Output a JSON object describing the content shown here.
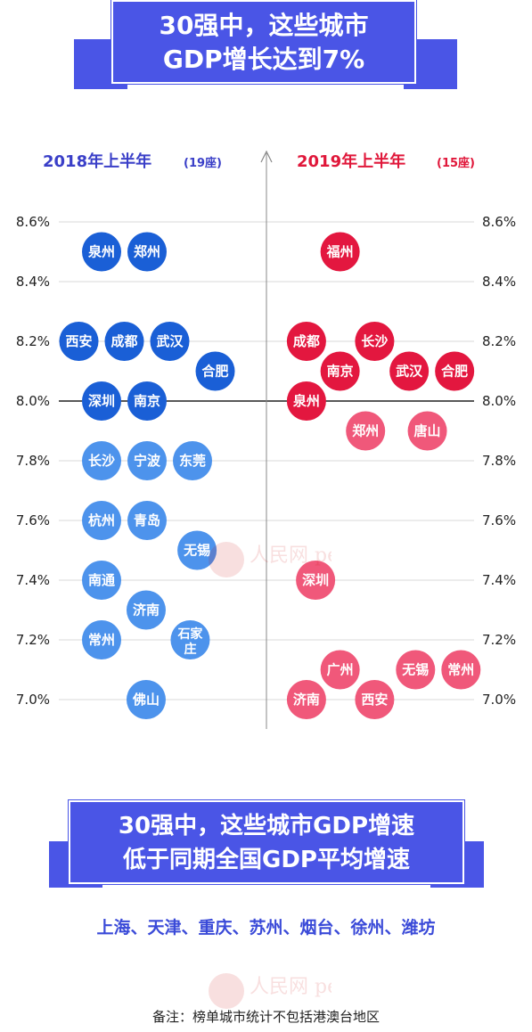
{
  "title_banner": {
    "line1": "30强中，这些城市",
    "line2": "GDP增长达到7%"
  },
  "chart_data": {
    "type": "scatter",
    "left_panel": {
      "title": "2018年上半年",
      "count": "(19座)",
      "color": "#3a3fc8",
      "points": [
        {
          "city": "泉州",
          "x": 1,
          "y": 8.5
        },
        {
          "city": "郑州",
          "x": 2,
          "y": 8.5
        },
        {
          "city": "西安",
          "x": 0.5,
          "y": 8.2
        },
        {
          "city": "成都",
          "x": 1.5,
          "y": 8.2
        },
        {
          "city": "武汉",
          "x": 2.5,
          "y": 8.2
        },
        {
          "city": "合肥",
          "x": 3.5,
          "y": 8.1
        },
        {
          "city": "深圳",
          "x": 1,
          "y": 8.0
        },
        {
          "city": "南京",
          "x": 2,
          "y": 8.0
        },
        {
          "city": "长沙",
          "x": 1,
          "y": 7.8
        },
        {
          "city": "宁波",
          "x": 2,
          "y": 7.8
        },
        {
          "city": "东莞",
          "x": 3,
          "y": 7.8
        },
        {
          "city": "杭州",
          "x": 1,
          "y": 7.6
        },
        {
          "city": "青岛",
          "x": 2,
          "y": 7.6
        },
        {
          "city": "无锡",
          "x": 3.1,
          "y": 7.5
        },
        {
          "city": "南通",
          "x": 1,
          "y": 7.4
        },
        {
          "city": "济南",
          "x": 1.98,
          "y": 7.3
        },
        {
          "city": "常州",
          "x": 1,
          "y": 7.2
        },
        {
          "city": "石家庄",
          "x": 2.95,
          "y": 7.2
        },
        {
          "city": "佛山",
          "x": 1.98,
          "y": 7.0
        }
      ]
    },
    "right_panel": {
      "title": "2019年上半年",
      "count": "(15座)",
      "color": "#e0173a",
      "points": [
        {
          "city": "福州",
          "x": 1.64,
          "y": 8.5
        },
        {
          "city": "成都",
          "x": 0.9,
          "y": 8.2
        },
        {
          "city": "长沙",
          "x": 2.4,
          "y": 8.2
        },
        {
          "city": "南京",
          "x": 1.64,
          "y": 8.1
        },
        {
          "city": "武汉",
          "x": 3.16,
          "y": 8.1
        },
        {
          "city": "合肥",
          "x": 4.16,
          "y": 8.1
        },
        {
          "city": "泉州",
          "x": 0.9,
          "y": 8.0
        },
        {
          "city": "郑州",
          "x": 2.2,
          "y": 7.9
        },
        {
          "city": "唐山",
          "x": 3.56,
          "y": 7.9
        },
        {
          "city": "深圳",
          "x": 1.1,
          "y": 7.4
        },
        {
          "city": "广州",
          "x": 1.64,
          "y": 7.1
        },
        {
          "city": "无锡",
          "x": 3.3,
          "y": 7.1
        },
        {
          "city": "常州",
          "x": 4.3,
          "y": 7.1
        },
        {
          "city": "济南",
          "x": 0.9,
          "y": 7.0
        },
        {
          "city": "西安",
          "x": 2.4,
          "y": 7.0
        }
      ]
    },
    "y_ticks": [
      "8.6%",
      "8.4%",
      "8.2%",
      "8.0%",
      "7.8%",
      "7.6%",
      "7.4%",
      "7.2%",
      "7.0%"
    ],
    "y_tick_values": [
      8.6,
      8.4,
      8.2,
      8.0,
      7.8,
      7.6,
      7.4,
      7.2,
      7.0
    ],
    "ylim": [
      7.0,
      8.6
    ],
    "reference_line": 8.0,
    "colors": {
      "left_above": "#1a5fd6",
      "left_below": "#4d93ec",
      "right_above": "#e3173f",
      "right_below": "#f0587a",
      "grid": "#d8d8d8",
      "axis": "#888888"
    }
  },
  "bottom_banner": {
    "line1": "30强中，这些城市GDP增速",
    "line2": "低于同期全国GDP平均增速"
  },
  "city_list": "上海、天津、重庆、苏州、烟台、徐州、潍坊",
  "note": "备注：榜单城市统计不包括港澳台地区",
  "watermark": "人民网 people.cn"
}
